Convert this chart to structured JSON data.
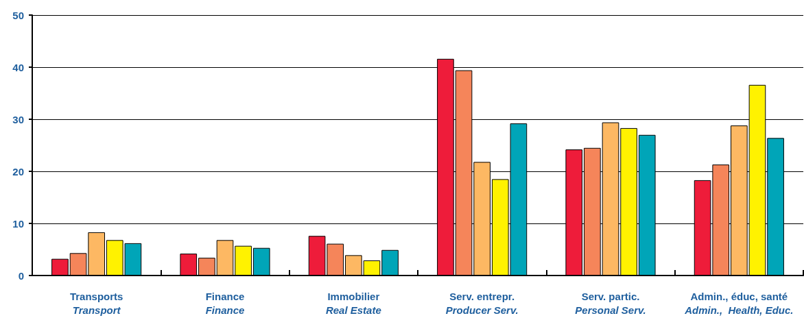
{
  "chart_data": {
    "type": "bar",
    "categories": [
      "Transports\nTransport",
      "Finance\nFinance",
      "Immobilier\nReal Estate",
      "Serv. entrepr.\nProducer Serv.",
      "Serv. partic.\nPersonal Serv.",
      "Admin., éduc, santé\nAdmin.,  Health, Educ."
    ],
    "series": [
      {
        "color": "#ee1c3a",
        "values": [
          3.2,
          4.2,
          7.6,
          41.6,
          24.2,
          18.3
        ]
      },
      {
        "color": "#f5855a",
        "values": [
          4.3,
          3.4,
          6.1,
          39.4,
          24.5,
          21.3
        ]
      },
      {
        "color": "#fdb863",
        "values": [
          8.3,
          6.8,
          3.9,
          21.8,
          29.4,
          28.8
        ]
      },
      {
        "color": "#fff200",
        "values": [
          6.8,
          5.7,
          2.9,
          18.5,
          28.3,
          36.6
        ]
      },
      {
        "color": "#00a5b8",
        "values": [
          6.2,
          5.3,
          4.9,
          29.2,
          27.0,
          26.4
        ]
      }
    ],
    "ylim": [
      0,
      50
    ],
    "yticks": [
      0,
      10,
      20,
      30,
      40,
      50
    ],
    "grid": "y"
  }
}
